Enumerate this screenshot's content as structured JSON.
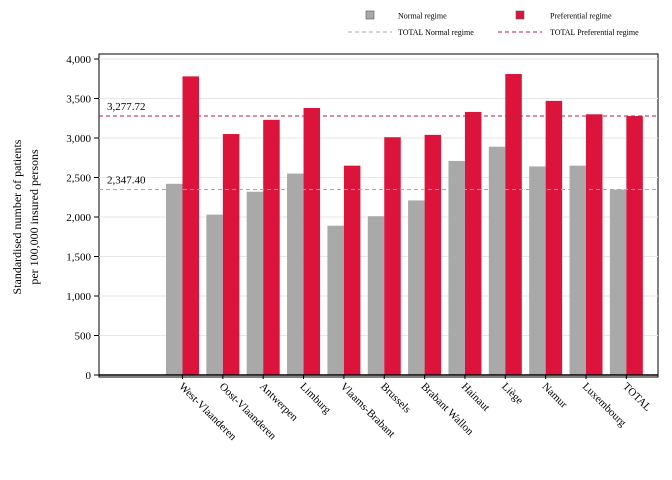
{
  "chart_data": {
    "type": "bar",
    "ylabel": [
      "Standardised number of patients",
      "per 100,000 insured persons"
    ],
    "xlabel": "",
    "ylim": [
      0,
      4000
    ],
    "yticks": [
      0,
      500,
      1000,
      1500,
      2000,
      2500,
      3000,
      3500,
      4000
    ],
    "ytick_labels": [
      "0",
      "500",
      "1,000",
      "1,500",
      "2,000",
      "2,500",
      "3,000",
      "3,500",
      "4,000"
    ],
    "grid": true,
    "legend_position": "top",
    "categories": [
      "West-Vlaanderen",
      "Oost-Vlaanderen",
      "Antwerpen",
      "Limburg",
      "Vlaams-Brabant",
      "Brussels",
      "Brabant Wallon",
      "Hainaut",
      "Liège",
      "Namur",
      "Luxembourg",
      "TOTAL"
    ],
    "series": [
      {
        "name": "Normal regime",
        "color": "#a9a9a9",
        "values": [
          2420,
          2030,
          2320,
          2550,
          1890,
          2010,
          2210,
          2710,
          2890,
          2640,
          2650,
          2347.4
        ]
      },
      {
        "name": "Preferential regime",
        "color": "#dc143c",
        "values": [
          3780,
          3050,
          3230,
          3380,
          2650,
          3010,
          3040,
          3330,
          3810,
          3470,
          3300,
          3277.72
        ]
      }
    ],
    "reference_lines": [
      {
        "name": "TOTAL Normal regime",
        "value": 2347.4,
        "label": "2,347.40",
        "color": "#a9a9a9",
        "style": "dashed"
      },
      {
        "name": "TOTAL Preferential regime",
        "value": 3277.72,
        "label": "3,277.72",
        "color": "#b22244",
        "style": "dashed"
      }
    ]
  }
}
